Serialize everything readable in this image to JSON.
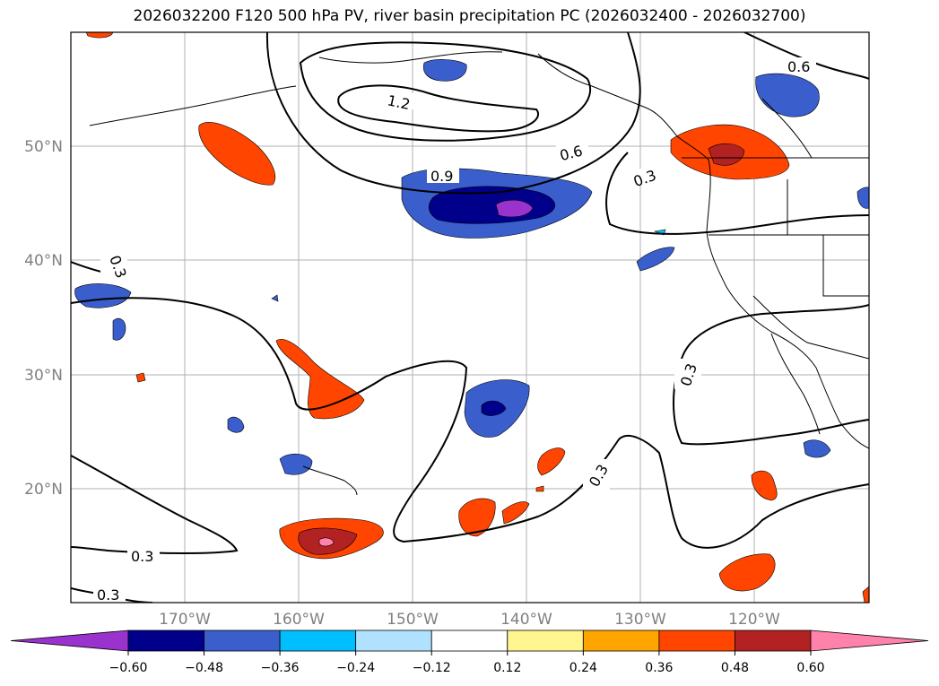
{
  "title": "2026032200 F120 500 hPa PV, river basin precipitation PC (2026032400 - 2026032700)",
  "lat_labels": [
    "50°N",
    "40°N",
    "30°N",
    "20°N"
  ],
  "lon_labels": [
    "170°W",
    "160°W",
    "150°W",
    "140°W",
    "130°W",
    "120°W"
  ],
  "contour_labels": [
    "1.2",
    "0.9",
    "0.6",
    "0.6",
    "0.3",
    "0.3",
    "0.3",
    "0.3",
    "0.3",
    "0.3"
  ],
  "colorbar": {
    "ticks": [
      "−0.60",
      "−0.48",
      "−0.36",
      "−0.24",
      "−0.12",
      "0.12",
      "0.24",
      "0.36",
      "0.48",
      "0.60"
    ],
    "colors": [
      "#9a32cd",
      "#00008b",
      "#3a5fcd",
      "#00bfff",
      "#b0e2ff",
      "#ffffff",
      "#fff68f",
      "#ffa500",
      "#ff4500",
      "#b22222",
      "#ff82ab"
    ]
  },
  "colors": {
    "grid": "#b0b0b0",
    "axis_label": "#808080",
    "coast": "#000000"
  }
}
